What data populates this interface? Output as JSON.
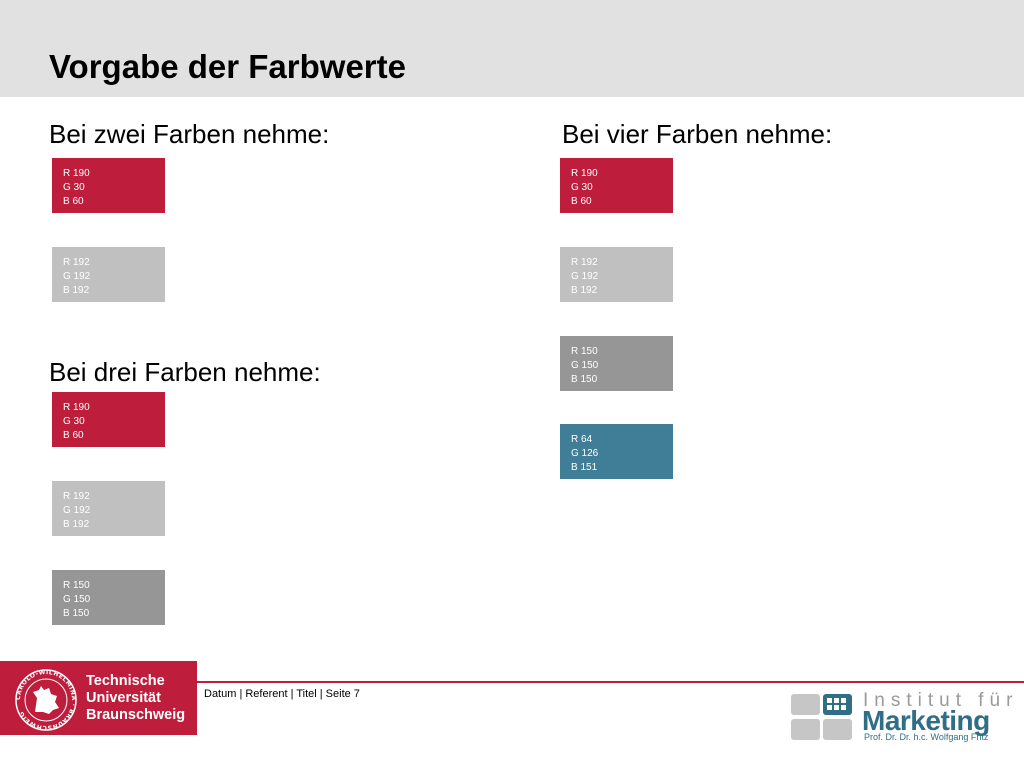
{
  "title": "Vorgabe der Farbwerte",
  "colors": {
    "red": "#be1e3c",
    "light_gray": "#c0c0c0",
    "mid_gray": "#969696",
    "blue": "#407e97",
    "header_band": "#e1e1e1"
  },
  "two_colors": {
    "heading": "Bei zwei Farben nehme:",
    "swatches": [
      {
        "r": "R 190",
        "g": "G 30",
        "b": "B 60"
      },
      {
        "r": "R 192",
        "g": "G 192",
        "b": "B 192"
      }
    ]
  },
  "three_colors": {
    "heading": "Bei drei Farben nehme:",
    "swatches": [
      {
        "r": "R 190",
        "g": "G 30",
        "b": "B 60"
      },
      {
        "r": "R 192",
        "g": "G 192",
        "b": "B 192"
      },
      {
        "r": "R 150",
        "g": "G 150",
        "b": "B 150"
      }
    ]
  },
  "four_colors": {
    "heading": "Bei vier Farben nehme:",
    "swatches": [
      {
        "r": "R 190",
        "g": "G 30",
        "b": "B 60"
      },
      {
        "r": "R 192",
        "g": "G 192",
        "b": "B 192"
      },
      {
        "r": "R 150",
        "g": "G 150",
        "b": "B 150"
      },
      {
        "r": "R 64",
        "g": "G 126",
        "b": "B 151"
      }
    ]
  },
  "footer": {
    "text": "Datum | Referent | Titel | Seite 7",
    "university_lines": [
      "Technische",
      "Universität",
      "Braunschweig"
    ],
    "seal_text": "CAROLO-WILHELMINA · BRAUNSCHWEIG",
    "institute_line1": "Institut für",
    "institute_line2": "Marketing",
    "institute_line3": "Prof. Dr. Dr. h.c. Wolfgang Fritz"
  }
}
